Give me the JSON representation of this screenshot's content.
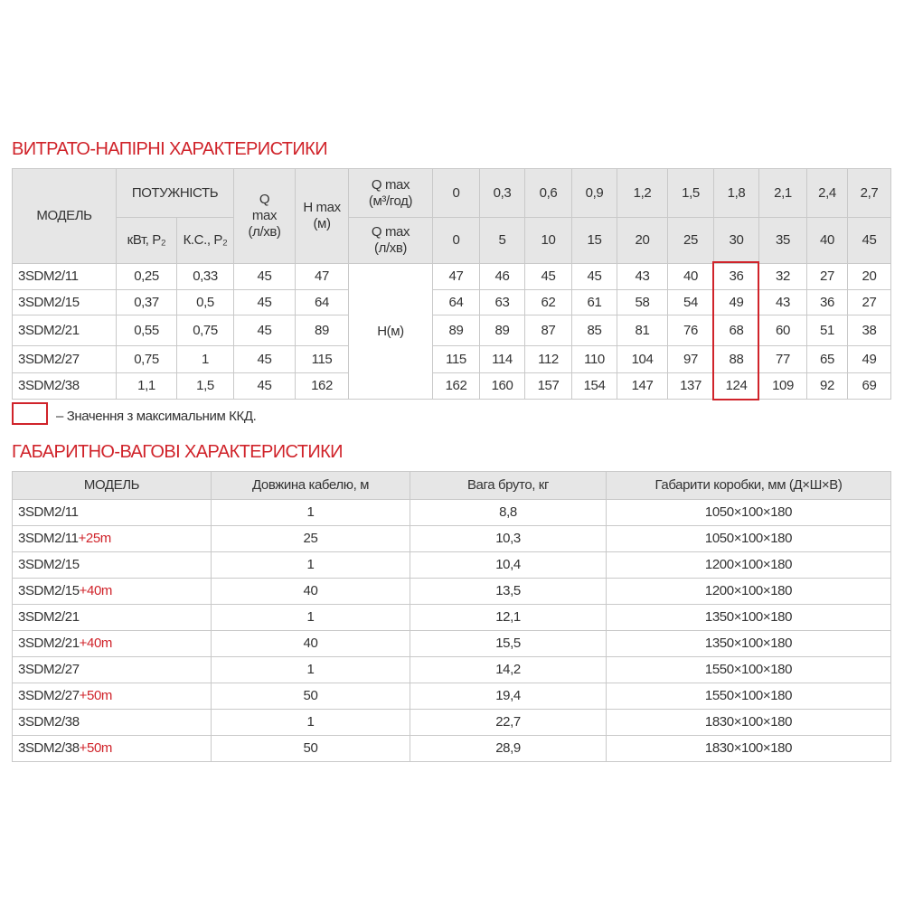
{
  "section1": {
    "title": "ВИТРАТО-НАПІРНІ ХАРАКТЕРИСТИКИ",
    "headers": {
      "model": "МОДЕЛЬ",
      "power": "ПОТУЖНІСТЬ",
      "kw": "кВт, P₂",
      "hp": "К.С., P₂",
      "q_max_1": "Q",
      "q_max_2": "max",
      "q_max_3": "(л/хв)",
      "h_max_1": "H max",
      "h_max_2": "(м)",
      "q_m3_1": "Q max",
      "q_m3_2": "(м³/год)",
      "q_l_1": "Q max",
      "q_l_2": "(л/хв)",
      "h_label": "H(м)"
    },
    "flow_m3h": [
      "0",
      "0,3",
      "0,6",
      "0,9",
      "1,2",
      "1,5",
      "1,8",
      "2,1",
      "2,4",
      "2,7"
    ],
    "flow_lmin": [
      "0",
      "5",
      "10",
      "15",
      "20",
      "25",
      "30",
      "35",
      "40",
      "45"
    ],
    "rows": [
      {
        "model": "3SDM2/11",
        "kw": "0,25",
        "hp": "0,33",
        "q": "45",
        "h": "47",
        "heads": [
          "47",
          "46",
          "45",
          "45",
          "43",
          "40",
          "36",
          "32",
          "27",
          "20"
        ]
      },
      {
        "model": "3SDM2/15",
        "kw": "0,37",
        "hp": "0,5",
        "q": "45",
        "h": "64",
        "heads": [
          "64",
          "63",
          "62",
          "61",
          "58",
          "54",
          "49",
          "43",
          "36",
          "27"
        ]
      },
      {
        "model": "3SDM2/21",
        "kw": "0,55",
        "hp": "0,75",
        "q": "45",
        "h": "89",
        "heads": [
          "89",
          "89",
          "87",
          "85",
          "81",
          "76",
          "68",
          "60",
          "51",
          "38"
        ]
      },
      {
        "model": "3SDM2/27",
        "kw": "0,75",
        "hp": "1",
        "q": "45",
        "h": "115",
        "heads": [
          "115",
          "114",
          "112",
          "110",
          "104",
          "97",
          "88",
          "77",
          "65",
          "49"
        ]
      },
      {
        "model": "3SDM2/38",
        "kw": "1,1",
        "hp": "1,5",
        "q": "45",
        "h": "162",
        "heads": [
          "162",
          "160",
          "157",
          "154",
          "147",
          "137",
          "124",
          "109",
          "92",
          "69"
        ]
      }
    ],
    "max_efficiency_column": "1,8",
    "legend": "– Значення з максимальним ККД."
  },
  "section2": {
    "title": "ГАБАРИТНО-ВАГОВІ ХАРАКТЕРИСТИКИ",
    "headers": [
      "МОДЕЛЬ",
      "Довжина кабелю, м",
      "Вага бруто, кг",
      "Габарити коробки, мм (Д×Ш×В)"
    ],
    "rows": [
      {
        "model": "3SDM2/11",
        "suffix": "",
        "cable": "1",
        "weight": "8,8",
        "box": "1050×100×180"
      },
      {
        "model": "3SDM2/11",
        "suffix": "+25m",
        "cable": "25",
        "weight": "10,3",
        "box": "1050×100×180"
      },
      {
        "model": "3SDM2/15",
        "suffix": "",
        "cable": "1",
        "weight": "10,4",
        "box": "1200×100×180"
      },
      {
        "model": "3SDM2/15",
        "suffix": "+40m",
        "cable": "40",
        "weight": "13,5",
        "box": "1200×100×180"
      },
      {
        "model": "3SDM2/21",
        "suffix": "",
        "cable": "1",
        "weight": "12,1",
        "box": "1350×100×180"
      },
      {
        "model": "3SDM2/21",
        "suffix": "+40m",
        "cable": "40",
        "weight": "15,5",
        "box": "1350×100×180"
      },
      {
        "model": "3SDM2/27",
        "suffix": "",
        "cable": "1",
        "weight": "14,2",
        "box": "1550×100×180"
      },
      {
        "model": "3SDM2/27",
        "suffix": "+50m",
        "cable": "50",
        "weight": "19,4",
        "box": "1550×100×180"
      },
      {
        "model": "3SDM2/38",
        "suffix": "",
        "cable": "1",
        "weight": "22,7",
        "box": "1830×100×180"
      },
      {
        "model": "3SDM2/38",
        "suffix": "+50m",
        "cable": "50",
        "weight": "28,9",
        "box": "1830×100×180"
      }
    ]
  },
  "colors": {
    "accent": "#d0232a",
    "header_bg": "#e6e6e6",
    "border": "#c9c9c9"
  }
}
